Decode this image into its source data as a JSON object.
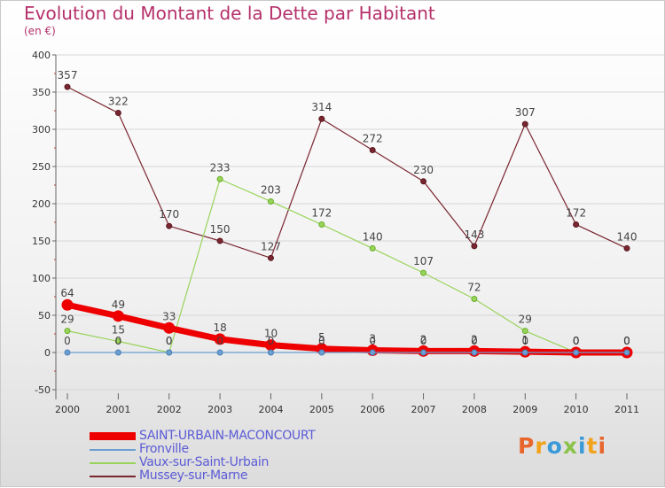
{
  "chart_data": {
    "type": "line",
    "title": "Evolution du Montant de la Dette par Habitant",
    "subtitle": "(en €)",
    "xlabel": "",
    "ylabel": "",
    "ylim": [
      -50,
      400
    ],
    "yticks": [
      -50,
      0,
      50,
      100,
      150,
      200,
      250,
      300,
      350,
      400
    ],
    "grid": "horizontal",
    "legend_position": "bottom-left",
    "categories": [
      "2000",
      "2001",
      "2002",
      "2003",
      "2004",
      "2005",
      "2006",
      "2007",
      "2008",
      "2009",
      "2010",
      "2011"
    ],
    "series": [
      {
        "name": "Mussey-sur-Marne",
        "color": "#7a2630",
        "values": [
          357,
          322,
          170,
          150,
          127,
          314,
          272,
          230,
          143,
          307,
          172,
          140
        ],
        "labels": [
          "357",
          "322",
          "170",
          "150",
          "127",
          "314",
          "272",
          "230",
          "143",
          "307",
          "172",
          "140"
        ]
      },
      {
        "name": "Vaux-sur-Saint-Urbain",
        "color": "#99d45a",
        "values": [
          29,
          15,
          0,
          233,
          203,
          172,
          140,
          107,
          72,
          29,
          0,
          0
        ],
        "labels": [
          "29",
          "15",
          "0",
          "233",
          "203",
          "172",
          "140",
          "107",
          "72",
          "29",
          "0",
          "0"
        ]
      },
      {
        "name": "Fronville",
        "color": "#6b9fd1",
        "values": [
          0,
          0,
          0,
          0,
          0,
          0,
          0,
          0,
          0,
          0,
          0,
          0
        ],
        "labels": [
          "0",
          "0",
          "0",
          "0",
          "0",
          "0",
          "0",
          "0",
          "0",
          "0",
          "0",
          "0"
        ]
      },
      {
        "name": "SAINT-URBAIN-MACONCOURT",
        "color": "#ee0000",
        "values": [
          64,
          49,
          33,
          18,
          10,
          5,
          3,
          2,
          2,
          1,
          0,
          0
        ],
        "labels": [
          "64",
          "49",
          "33",
          "18",
          "10",
          "5",
          "3",
          "2",
          "2",
          "1",
          "0",
          "0"
        ]
      }
    ],
    "legend": [
      "SAINT-URBAIN-MACONCOURT",
      "Fronville",
      "Vaux-sur-Saint-Urbain",
      "Mussey-sur-Marne"
    ]
  },
  "logo": {
    "text": "Proxiti"
  }
}
